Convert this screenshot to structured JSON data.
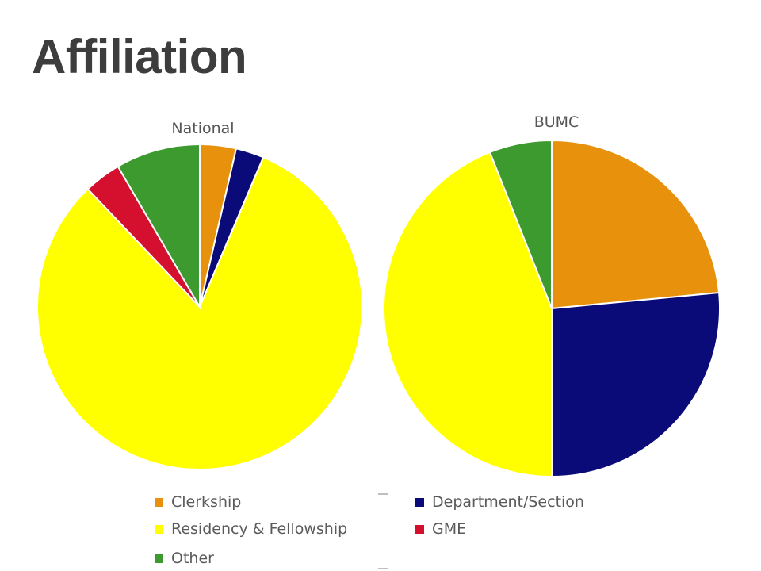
{
  "slide": {
    "title": "Affiliation"
  },
  "colors": {
    "Clerkship": "#e8910d",
    "Department/Section": "#0a0a78",
    "Residency & Fellowship": "#ffff00",
    "GME": "#d4102e",
    "Other": "#3c9a2e"
  },
  "chart_data": [
    {
      "type": "pie",
      "title": "National",
      "categories": [
        "Clerkship",
        "Department/Section",
        "Residency & Fellowship",
        "GME",
        "Other"
      ],
      "values": [
        3.6,
        2.8,
        81.5,
        3.7,
        8.4
      ],
      "start_angle": "12 o'clock",
      "direction": "clockwise"
    },
    {
      "type": "pie",
      "title": "BUMC",
      "categories": [
        "Clerkship",
        "Department/Section",
        "Residency & Fellowship",
        "GME",
        "Other"
      ],
      "values": [
        23.5,
        26.5,
        44.0,
        0,
        6.0
      ],
      "start_angle": "12 o'clock",
      "direction": "clockwise"
    }
  ],
  "legend": {
    "items": [
      {
        "label": "Clerkship",
        "color_key": "Clerkship"
      },
      {
        "label": "Department/Section",
        "color_key": "Department/Section"
      },
      {
        "label": "Residency & Fellowship",
        "color_key": "Residency & Fellowship"
      },
      {
        "label": "GME",
        "color_key": "GME"
      },
      {
        "label": "Other",
        "color_key": "Other"
      }
    ]
  }
}
